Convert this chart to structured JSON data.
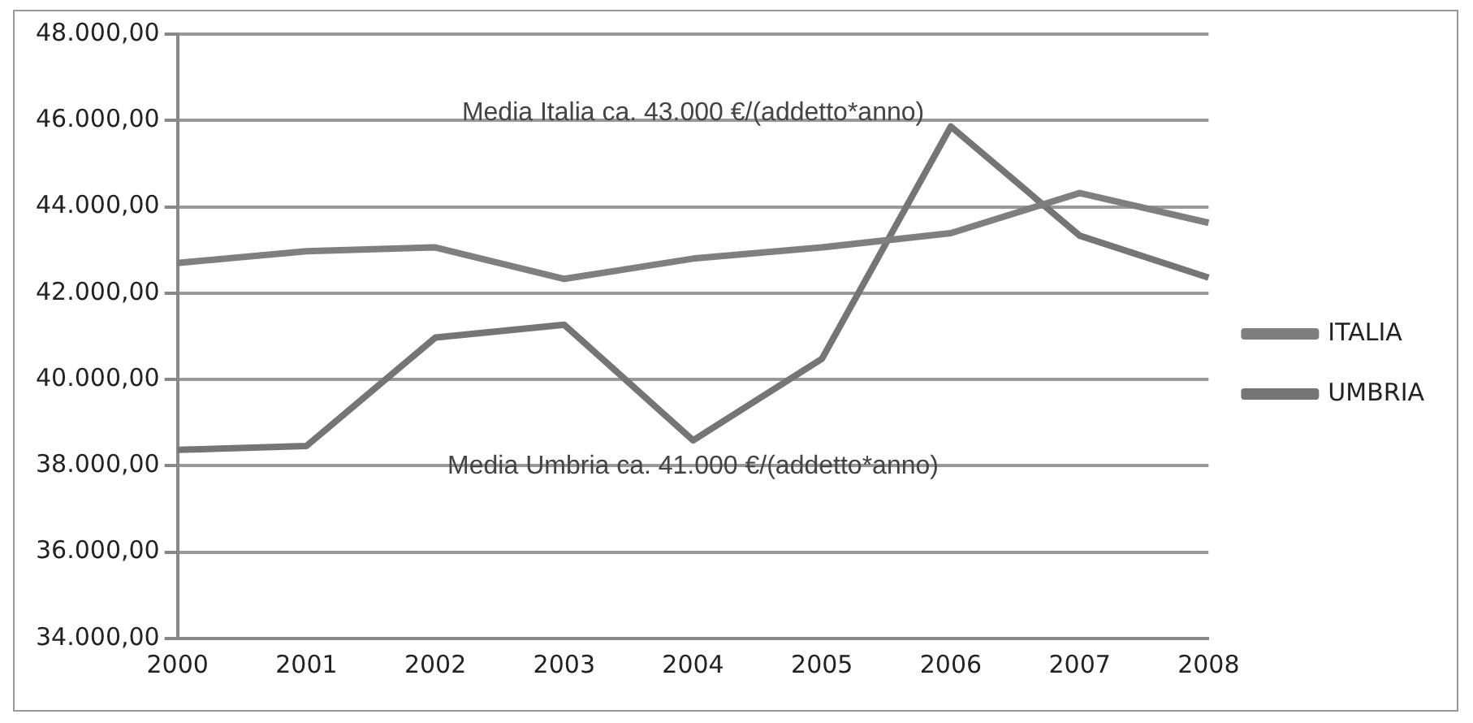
{
  "chart_data": {
    "type": "line",
    "categories": [
      "2000",
      "2001",
      "2002",
      "2003",
      "2004",
      "2005",
      "2006",
      "2007",
      "2008"
    ],
    "series": [
      {
        "name": "ITALIA",
        "color": "#7f7f7f",
        "values": [
          42700,
          42970,
          43060,
          42330,
          42800,
          43060,
          43390,
          44320,
          43630
        ]
      },
      {
        "name": "UMBRIA",
        "color": "#757575",
        "values": [
          38370,
          38460,
          40970,
          41270,
          38590,
          40480,
          45860,
          43330,
          42360
        ]
      }
    ],
    "ylim": [
      34000,
      48000
    ],
    "yticks": [
      {
        "value": 34000,
        "label": "34.000,00"
      },
      {
        "value": 36000,
        "label": "36.000,00"
      },
      {
        "value": 38000,
        "label": "38.000,00"
      },
      {
        "value": 40000,
        "label": "40.000,00"
      },
      {
        "value": 42000,
        "label": "42.000,00"
      },
      {
        "value": 44000,
        "label": "44.000,00"
      },
      {
        "value": 46000,
        "label": "46.000,00"
      },
      {
        "value": 48000,
        "label": "48.000,00"
      }
    ],
    "annotations": [
      "Media Italia ca. 43.000 €/(addetto*anno)",
      "Media Umbria ca. 41.000 €/(addetto*anno)"
    ],
    "grid": "y",
    "legend": "right",
    "marker": "none",
    "line_style": "solid"
  }
}
